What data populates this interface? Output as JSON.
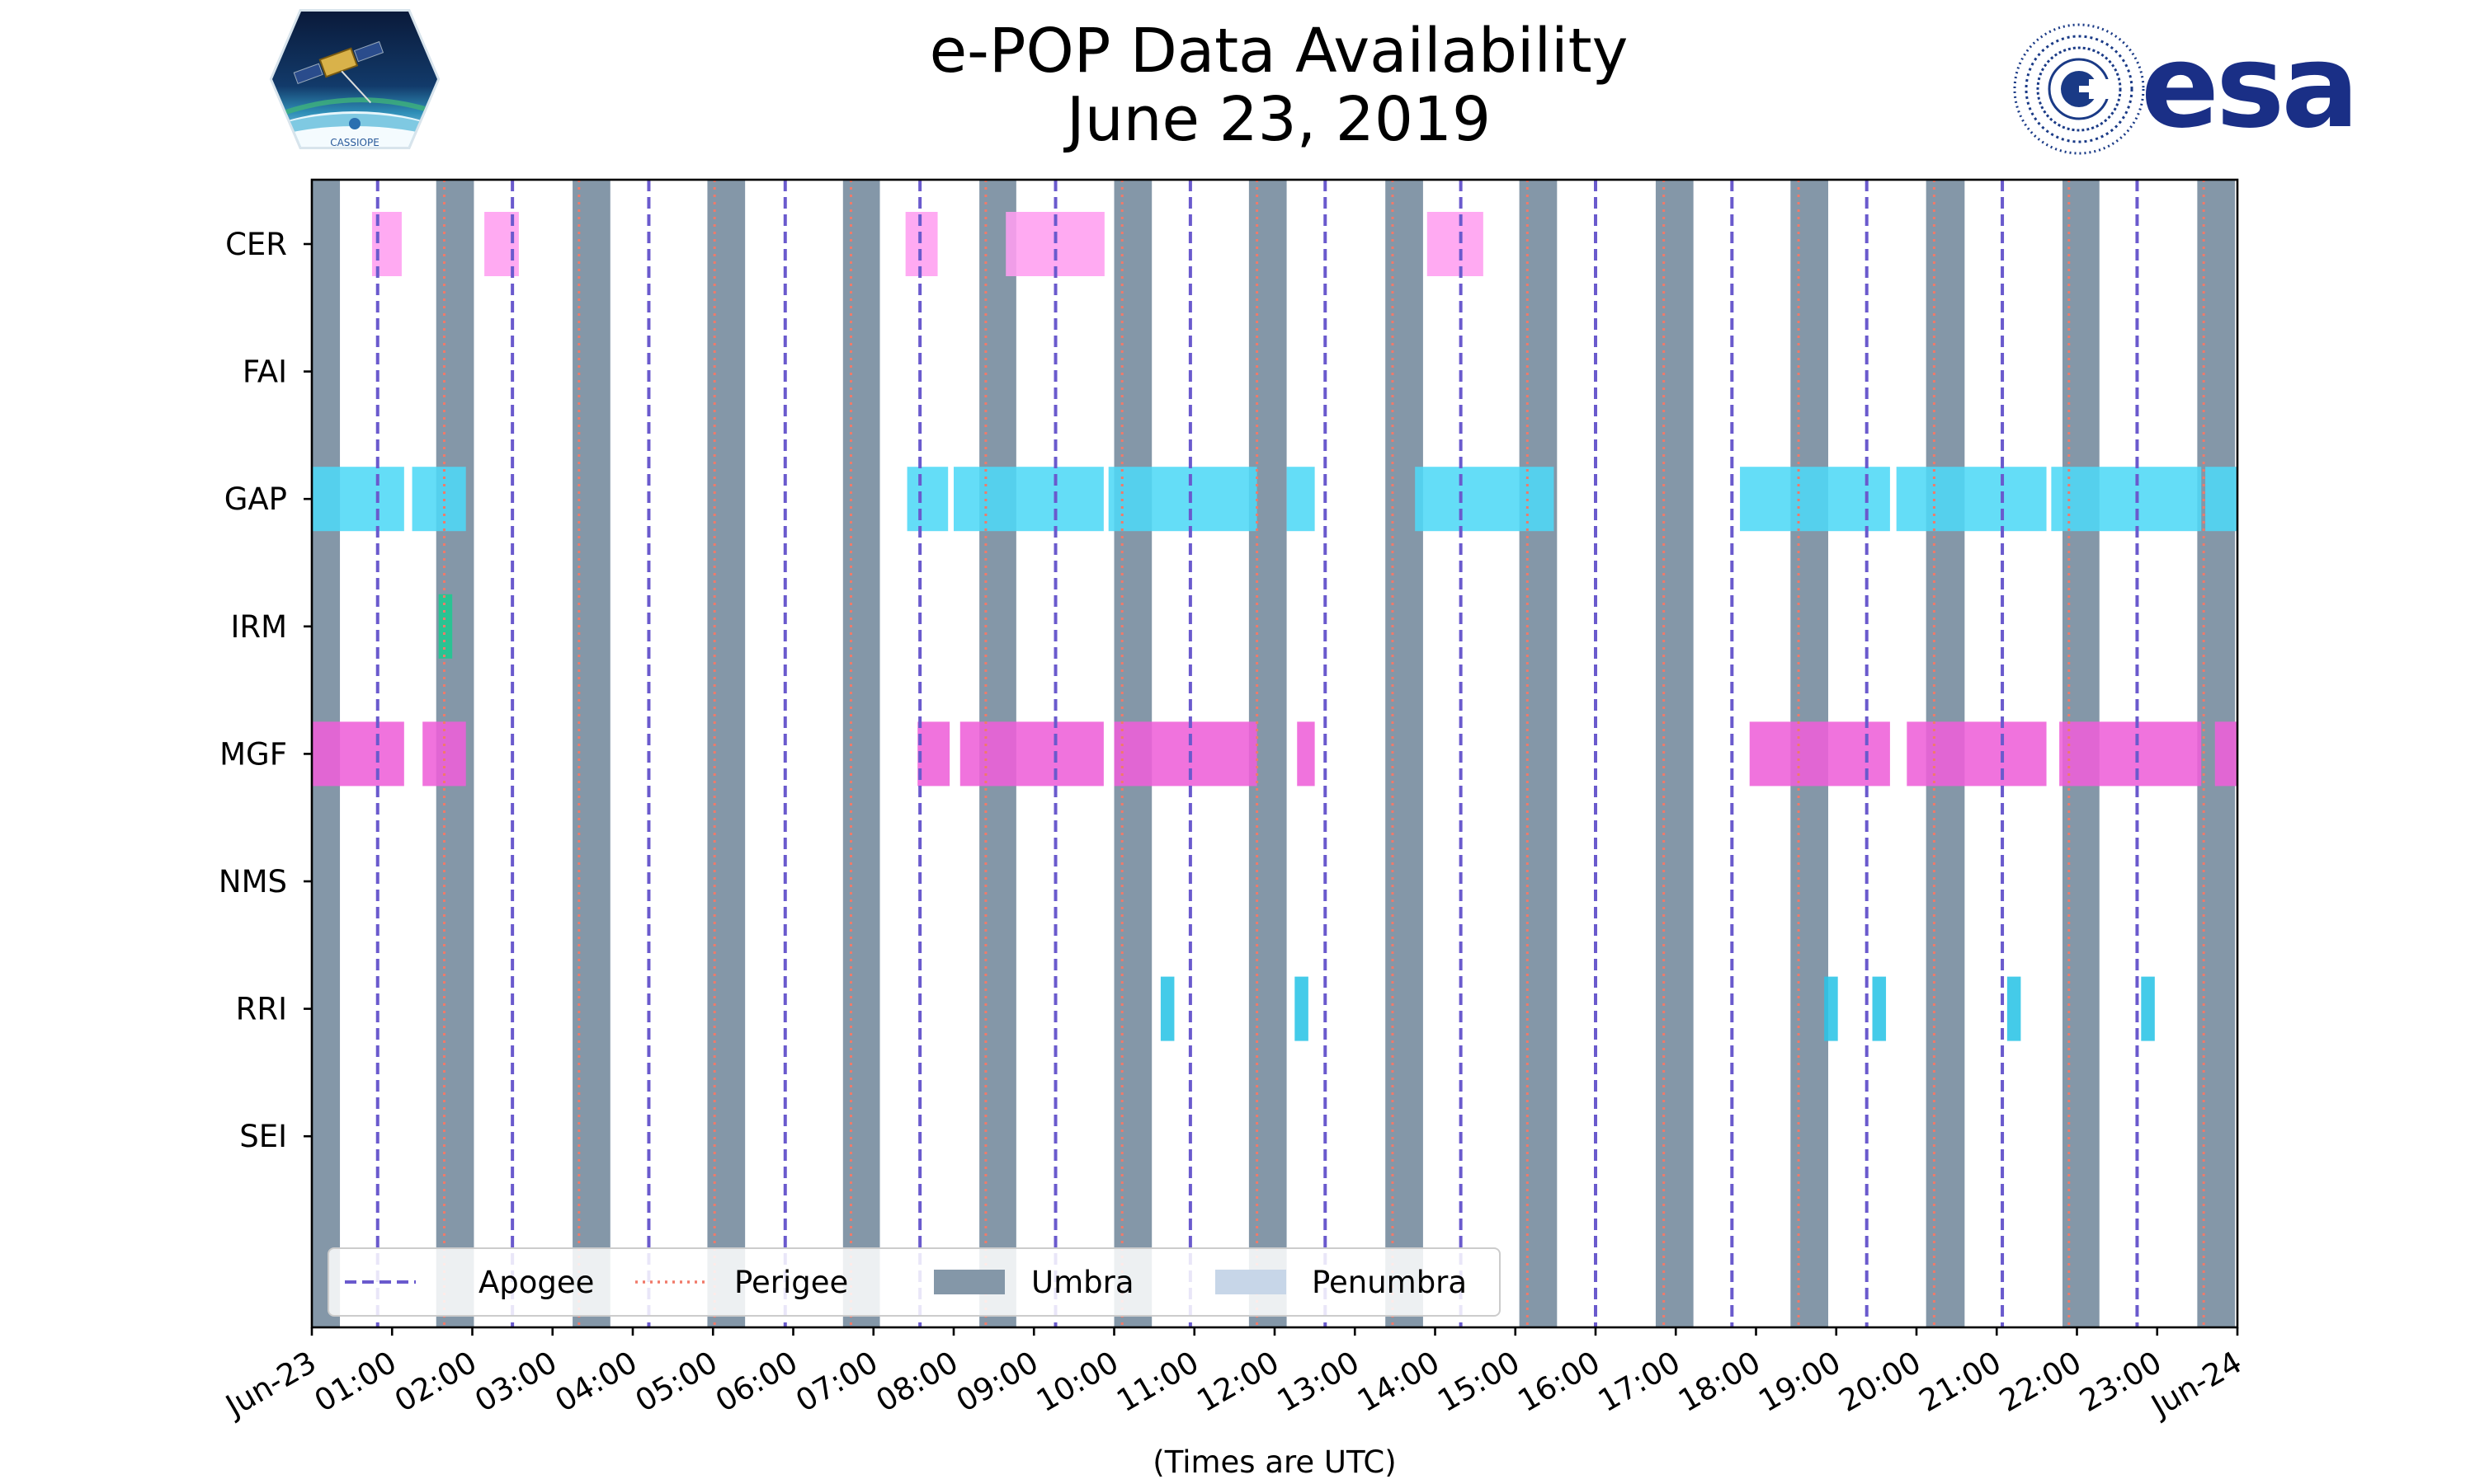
{
  "chart_data": {
    "type": "timeline",
    "title": "e-POP Data Availability",
    "subtitle": "June 23, 2019",
    "xlabel": "(Times are UTC)",
    "xlim": [
      0,
      24
    ],
    "x_tick_values": [
      0,
      1,
      2,
      3,
      4,
      5,
      6,
      7,
      8,
      9,
      10,
      11,
      12,
      13,
      14,
      15,
      16,
      17,
      18,
      19,
      20,
      21,
      22,
      23,
      24
    ],
    "x_tick_labels": [
      "Jun-23",
      "01:00",
      "02:00",
      "03:00",
      "04:00",
      "05:00",
      "06:00",
      "07:00",
      "08:00",
      "09:00",
      "10:00",
      "11:00",
      "12:00",
      "13:00",
      "14:00",
      "15:00",
      "16:00",
      "17:00",
      "18:00",
      "19:00",
      "20:00",
      "21:00",
      "22:00",
      "23:00",
      "Jun-24"
    ],
    "instruments": [
      "CER",
      "FAI",
      "GAP",
      "IRM",
      "MGF",
      "NMS",
      "RRI",
      "SEI"
    ],
    "umbra": [
      [
        0,
        0.35
      ],
      [
        1.55,
        2.02
      ],
      [
        3.25,
        3.72
      ],
      [
        4.93,
        5.4
      ],
      [
        6.62,
        7.08
      ],
      [
        8.32,
        8.78
      ],
      [
        10.0,
        10.47
      ],
      [
        11.68,
        12.15
      ],
      [
        13.38,
        13.85
      ],
      [
        15.05,
        15.52
      ],
      [
        16.75,
        17.22
      ],
      [
        18.43,
        18.9
      ],
      [
        20.12,
        20.6
      ],
      [
        21.82,
        22.28
      ],
      [
        23.5,
        23.97
      ]
    ],
    "apogee": [
      0.82,
      2.5,
      4.2,
      5.9,
      7.58,
      9.27,
      10.95,
      12.63,
      14.32,
      16.0,
      17.7,
      19.38,
      21.07,
      22.75
    ],
    "perigee": [
      1.65,
      3.33,
      5.02,
      6.72,
      8.4,
      10.1,
      11.78,
      13.47,
      15.15,
      16.85,
      18.53,
      20.22,
      21.9,
      23.58
    ],
    "series": [
      {
        "name": "CER",
        "color": "#ff9ef0",
        "segments": [
          [
            0.75,
            1.12
          ],
          [
            2.15,
            2.58
          ],
          [
            7.4,
            7.8
          ],
          [
            8.65,
            9.88
          ],
          [
            13.9,
            14.6
          ]
        ]
      },
      {
        "name": "FAI",
        "color": "#888888",
        "segments": []
      },
      {
        "name": "GAP",
        "color": "#4fd8f6",
        "segments": [
          [
            0,
            1.15
          ],
          [
            1.25,
            1.92
          ],
          [
            7.42,
            7.93
          ],
          [
            8.0,
            9.87
          ],
          [
            9.93,
            11.78
          ],
          [
            12.15,
            12.5
          ],
          [
            13.75,
            15.48
          ],
          [
            17.8,
            19.67
          ],
          [
            19.75,
            21.62
          ],
          [
            21.68,
            23.55
          ],
          [
            23.6,
            24
          ]
        ]
      },
      {
        "name": "IRM",
        "color": "#1ec990",
        "segments": [
          [
            1.58,
            1.75
          ]
        ]
      },
      {
        "name": "MGF",
        "color": "#ee60d8",
        "segments": [
          [
            0,
            1.15
          ],
          [
            1.38,
            1.92
          ],
          [
            7.55,
            7.95
          ],
          [
            8.08,
            9.87
          ],
          [
            10.0,
            11.78
          ],
          [
            12.28,
            12.5
          ],
          [
            17.92,
            19.67
          ],
          [
            19.88,
            21.62
          ],
          [
            21.78,
            23.55
          ],
          [
            23.72,
            24
          ]
        ]
      },
      {
        "name": "NMS",
        "color": "#888888",
        "segments": []
      },
      {
        "name": "RRI",
        "color": "#2ac4e6",
        "segments": [
          [
            10.58,
            10.75
          ],
          [
            12.25,
            12.42
          ],
          [
            18.85,
            19.02
          ],
          [
            19.45,
            19.62
          ],
          [
            21.13,
            21.3
          ],
          [
            22.8,
            22.97
          ]
        ]
      },
      {
        "name": "SEI",
        "color": "#888888",
        "segments": []
      }
    ],
    "legend": {
      "position": "lower-left",
      "items": [
        {
          "label": "Apogee",
          "kind": "dashed",
          "color": "#6a5acd"
        },
        {
          "label": "Perigee",
          "kind": "dotted",
          "color": "#f07a6a"
        },
        {
          "label": "Umbra",
          "kind": "patch",
          "color": "#8497a8"
        },
        {
          "label": "Penumbra",
          "kind": "patch",
          "color": "#c7d6e8"
        }
      ]
    }
  },
  "logos": {
    "left_mission": "CASSIOPE",
    "right_agency": "esa"
  }
}
